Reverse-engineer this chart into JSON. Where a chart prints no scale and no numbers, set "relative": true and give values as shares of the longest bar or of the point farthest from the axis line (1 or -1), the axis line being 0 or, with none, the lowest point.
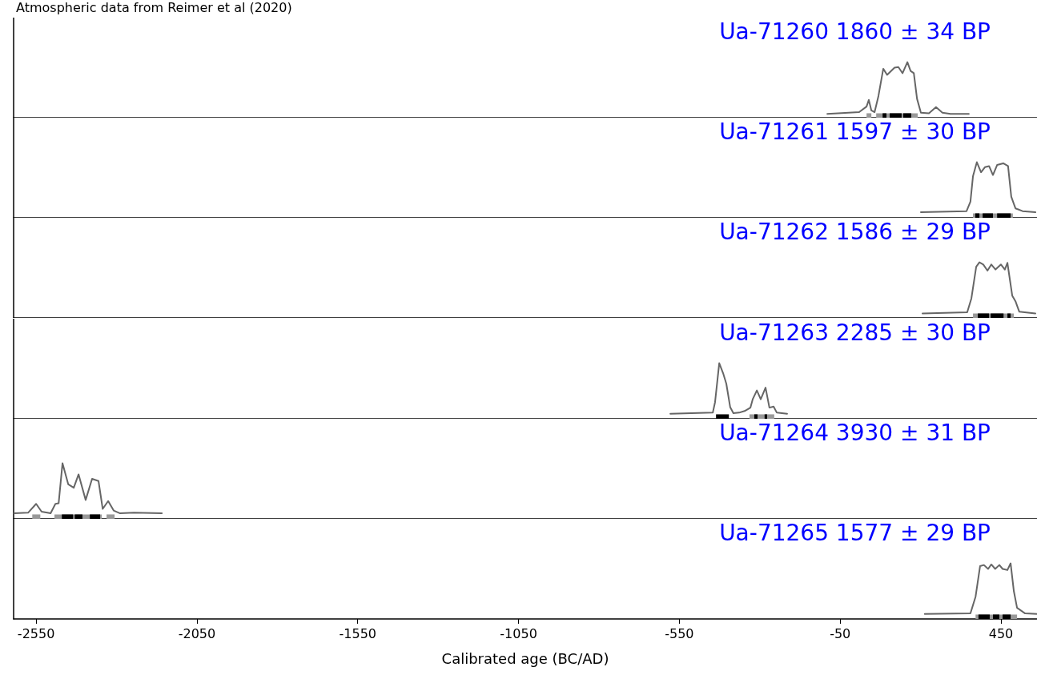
{
  "chart_data": [
    {
      "type": "line",
      "title": "Ua-71260 1860 ± 34 BP",
      "annotations": [
        "Atmospheric data from Reimer et al (2020)"
      ],
      "relative": true,
      "xlim": [
        -2620,
        562
      ],
      "tick_labels": false,
      "grid": false,
      "marker": "none",
      "series": [
        {
          "color": "#666666",
          "x": [
            -90,
            9,
            32,
            39,
            47,
            57,
            69,
            84,
            96,
            119,
            131,
            144,
            159,
            169,
            179,
            189,
            201,
            226,
            248,
            268,
            293,
            350
          ],
          "values": [
            0.07,
            0.1,
            0.2,
            0.32,
            0.13,
            0.1,
            0.39,
            0.88,
            0.77,
            0.9,
            0.91,
            0.8,
            1,
            0.84,
            0.8,
            0.34,
            0.09,
            0.08,
            0.19,
            0.09,
            0.07,
            0.07
          ]
        }
      ],
      "bands": [
        {
          "axis": "x",
          "from": 32,
          "to": 47,
          "color": "#999999"
        },
        {
          "axis": "x",
          "from": 62,
          "to": 191,
          "color": "#999999"
        },
        {
          "axis": "x",
          "from": 82,
          "to": 94,
          "color": "#000000"
        },
        {
          "axis": "x",
          "from": 104,
          "to": 141,
          "color": "#000000"
        },
        {
          "axis": "x",
          "from": 146,
          "to": 171,
          "color": "#000000"
        }
      ]
    },
    {
      "type": "line",
      "title": "Ua-71261 1597 ± 30 BP",
      "relative": true,
      "xlim": [
        -2620,
        562
      ],
      "tick_labels": false,
      "grid": false,
      "marker": "none",
      "series": [
        {
          "color": "#666666",
          "x": [
            201,
            343,
            355,
            363,
            375,
            388,
            400,
            413,
            425,
            438,
            457,
            472,
            482,
            495,
            517,
            557
          ],
          "values": [
            0.1,
            0.12,
            0.29,
            0.75,
            1,
            0.82,
            0.91,
            0.93,
            0.77,
            0.95,
            0.98,
            0.93,
            0.38,
            0.17,
            0.12,
            0.1
          ]
        }
      ],
      "bands": [
        {
          "axis": "x",
          "from": 363,
          "to": 487,
          "color": "#999999"
        },
        {
          "axis": "x",
          "from": 370,
          "to": 383,
          "color": "#000000"
        },
        {
          "axis": "x",
          "from": 393,
          "to": 425,
          "color": "#000000"
        },
        {
          "axis": "x",
          "from": 438,
          "to": 480,
          "color": "#000000"
        }
      ]
    },
    {
      "type": "line",
      "title": "Ua-71262 1586 ± 29 BP",
      "relative": true,
      "xlim": [
        -2620,
        562
      ],
      "tick_labels": false,
      "grid": false,
      "marker": "none",
      "series": [
        {
          "color": "#666666",
          "x": [
            206,
            345,
            358,
            373,
            383,
            395,
            408,
            420,
            433,
            450,
            462,
            470,
            485,
            495,
            507,
            557
          ],
          "values": [
            0.08,
            0.1,
            0.35,
            0.92,
            1,
            0.96,
            0.85,
            0.96,
            0.87,
            0.96,
            0.87,
            0.99,
            0.4,
            0.3,
            0.11,
            0.08
          ]
        }
      ],
      "bands": [
        {
          "axis": "x",
          "from": 363,
          "to": 490,
          "color": "#999999"
        },
        {
          "axis": "x",
          "from": 378,
          "to": 413,
          "color": "#000000"
        },
        {
          "axis": "x",
          "from": 418,
          "to": 458,
          "color": "#000000"
        },
        {
          "axis": "x",
          "from": 470,
          "to": 480,
          "color": "#000000"
        }
      ]
    },
    {
      "type": "line",
      "title": "Ua-71263 2285 ± 30 BP",
      "relative": true,
      "xlim": [
        -2620,
        562
      ],
      "tick_labels": false,
      "grid": false,
      "marker": "none",
      "series": [
        {
          "color": "#666666",
          "x": [
            -578,
            -446,
            -439,
            -426,
            -414,
            -404,
            -392,
            -382,
            -364,
            -347,
            -329,
            -322,
            -309,
            -297,
            -282,
            -270,
            -257,
            -247,
            -215
          ],
          "values": [
            0.09,
            0.11,
            0.3,
            1,
            0.82,
            0.63,
            0.21,
            0.1,
            0.11,
            0.14,
            0.2,
            0.35,
            0.51,
            0.35,
            0.56,
            0.2,
            0.22,
            0.11,
            0.09
          ]
        }
      ],
      "bands": [
        {
          "axis": "x",
          "from": -436,
          "to": -396,
          "color": "#000000"
        },
        {
          "axis": "x",
          "from": -332,
          "to": -255,
          "color": "#999999"
        },
        {
          "axis": "x",
          "from": -317,
          "to": -307,
          "color": "#000000"
        },
        {
          "axis": "x",
          "from": -285,
          "to": -277,
          "color": "#000000"
        }
      ]
    },
    {
      "type": "line",
      "title": "Ua-71264 3930 ± 31 BP",
      "relative": true,
      "xlim": [
        -2620,
        562
      ],
      "tick_labels": false,
      "grid": false,
      "marker": "none",
      "series": [
        {
          "color": "#666666",
          "x": [
            -2618,
            -2575,
            -2550,
            -2533,
            -2505,
            -2490,
            -2480,
            -2468,
            -2450,
            -2433,
            -2418,
            -2396,
            -2376,
            -2356,
            -2343,
            -2326,
            -2309,
            -2289,
            -2246,
            -2159
          ],
          "values": [
            0.1,
            0.11,
            0.27,
            0.13,
            0.1,
            0.27,
            0.28,
            1,
            0.62,
            0.56,
            0.8,
            0.34,
            0.72,
            0.68,
            0.18,
            0.32,
            0.15,
            0.1,
            0.11,
            0.1
          ]
        }
      ],
      "bands": [
        {
          "axis": "x",
          "from": -2562,
          "to": -2537,
          "color": "#999999"
        },
        {
          "axis": "x",
          "from": -2493,
          "to": -2346,
          "color": "#999999"
        },
        {
          "axis": "x",
          "from": -2331,
          "to": -2306,
          "color": "#999999"
        },
        {
          "axis": "x",
          "from": -2470,
          "to": -2435,
          "color": "#000000"
        },
        {
          "axis": "x",
          "from": -2430,
          "to": -2406,
          "color": "#000000"
        },
        {
          "axis": "x",
          "from": -2383,
          "to": -2351,
          "color": "#000000"
        }
      ]
    },
    {
      "type": "line",
      "title": "Ua-71265 1577 ± 29 BP",
      "xlabel": "Calibrated age (BC/AD)",
      "relative": true,
      "xlim": [
        -2620,
        562
      ],
      "xticks": [
        -2550,
        -2050,
        -1550,
        -1050,
        -550,
        -50,
        450
      ],
      "tick_labels": "x",
      "grid": false,
      "marker": "none",
      "series": [
        {
          "color": "#666666",
          "x": [
            213,
            355,
            371,
            385,
            397,
            410,
            420,
            432,
            445,
            455,
            470,
            480,
            490,
            500,
            525,
            562
          ],
          "values": [
            0.09,
            0.1,
            0.4,
            0.95,
            0.97,
            0.9,
            0.98,
            0.9,
            0.97,
            0.9,
            0.88,
            1,
            0.5,
            0.2,
            0.1,
            0.09
          ]
        }
      ],
      "bands": [
        {
          "axis": "x",
          "from": 371,
          "to": 500,
          "color": "#999999"
        },
        {
          "axis": "x",
          "from": 380,
          "to": 415,
          "color": "#000000"
        },
        {
          "axis": "x",
          "from": 425,
          "to": 445,
          "color": "#000000"
        },
        {
          "axis": "x",
          "from": 455,
          "to": 480,
          "color": "#000000"
        }
      ]
    }
  ]
}
